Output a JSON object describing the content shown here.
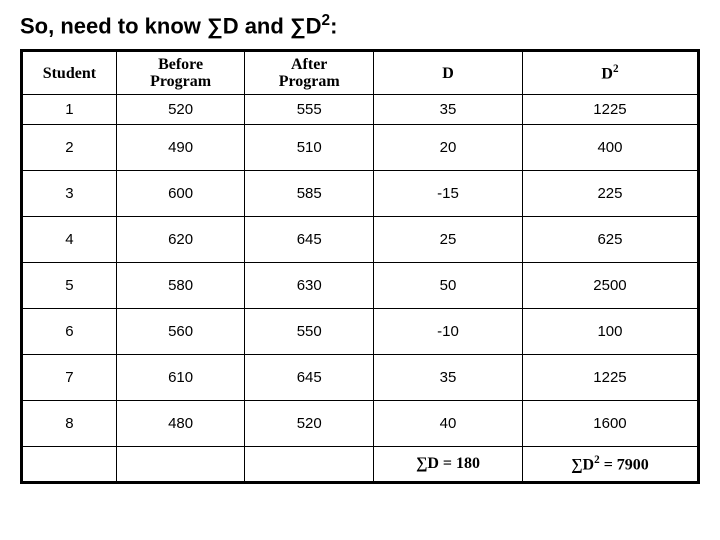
{
  "title_prefix": "So, need to know ",
  "title_sym1": "∑D and ",
  "title_sym2": "∑D",
  "title_sup": "2",
  "title_suffix": ":",
  "table": {
    "columns": [
      "Student",
      "Before Program",
      "After Program",
      "D",
      "D2"
    ],
    "rows": [
      [
        "1",
        "520",
        "555",
        "35",
        "1225"
      ],
      [
        "2",
        "490",
        "510",
        "20",
        "400"
      ],
      [
        "3",
        "600",
        "585",
        "-15",
        "225"
      ],
      [
        "4",
        "620",
        "645",
        "25",
        "625"
      ],
      [
        "5",
        "580",
        "630",
        "50",
        "2500"
      ],
      [
        "6",
        "560",
        "550",
        "-10",
        "100"
      ],
      [
        "7",
        "610",
        "645",
        "35",
        "1225"
      ],
      [
        "8",
        "480",
        "520",
        "40",
        "1600"
      ]
    ],
    "sum_d_label": "∑D = 180",
    "sum_d2_prefix": "∑D",
    "sum_d2_sup": "2",
    "sum_d2_suffix": " = 7900"
  },
  "colors": {
    "background": "#ffffff",
    "border": "#000000",
    "text": "#000000"
  }
}
